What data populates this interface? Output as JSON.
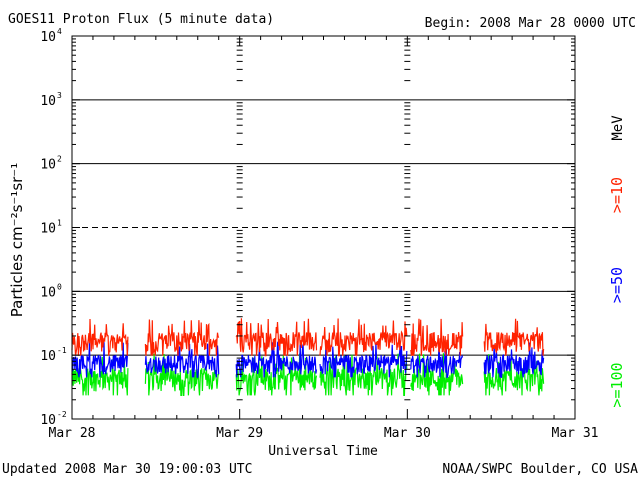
{
  "title": "GOES11 Proton Flux (5 minute data)",
  "begin": "Begin: 2008 Mar 28 0000 UTC",
  "updated": "Updated 2008 Mar 30 19:00:03 UTC",
  "credit": "NOAA/SWPC Boulder, CO USA",
  "chart_data": {
    "type": "line",
    "title": "GOES11 Proton Flux (5 minute data)",
    "xlabel": "Universal Time",
    "ylabel": "Particles cm⁻²s⁻¹sr⁻¹",
    "yscale": "log",
    "ylim": [
      0.01,
      10000
    ],
    "xlim": [
      0,
      72
    ],
    "x_units": "hours since 2008 Mar 28 0000 UTC",
    "x_ticks": [
      {
        "x": 0,
        "label": "Mar 28"
      },
      {
        "x": 24,
        "label": "Mar 29"
      },
      {
        "x": 48,
        "label": "Mar 30"
      },
      {
        "x": 72,
        "label": "Mar 31"
      }
    ],
    "y_ticks": [
      {
        "value": 0.01,
        "base": "10",
        "exp": "-2"
      },
      {
        "value": 0.1,
        "base": "10",
        "exp": "-1"
      },
      {
        "value": 1,
        "base": "10",
        "exp": "0"
      },
      {
        "value": 10,
        "base": "10",
        "exp": "1"
      },
      {
        "value": 100,
        "base": "10",
        "exp": "2"
      },
      {
        "value": 1000,
        "base": "10",
        "exp": "3"
      },
      {
        "value": 10000,
        "base": "10",
        "exp": "4"
      }
    ],
    "threshold_lines": [
      {
        "value": 0.1,
        "style": "solid"
      },
      {
        "value": 1,
        "style": "solid"
      },
      {
        "value": 10,
        "style": "dashed"
      },
      {
        "value": 100,
        "style": "solid"
      },
      {
        "value": 1000,
        "style": "solid"
      }
    ],
    "data_segments_hours": [
      [
        0,
        8
      ],
      [
        10.5,
        21
      ],
      [
        23.5,
        35
      ],
      [
        35.5,
        48
      ],
      [
        48.5,
        56
      ],
      [
        59,
        67.5
      ]
    ],
    "legend_placement": "right, rotated",
    "series": [
      {
        "name": ">=10",
        "color": "#ff2200",
        "typical": 0.17,
        "spread": 0.06
      },
      {
        "name": ">=50",
        "color": "#0000ff",
        "typical": 0.075,
        "spread": 0.025
      },
      {
        "name": ">=100",
        "color": "#00ee00",
        "typical": 0.045,
        "spread": 0.018
      }
    ],
    "legend_unit": "MeV"
  }
}
